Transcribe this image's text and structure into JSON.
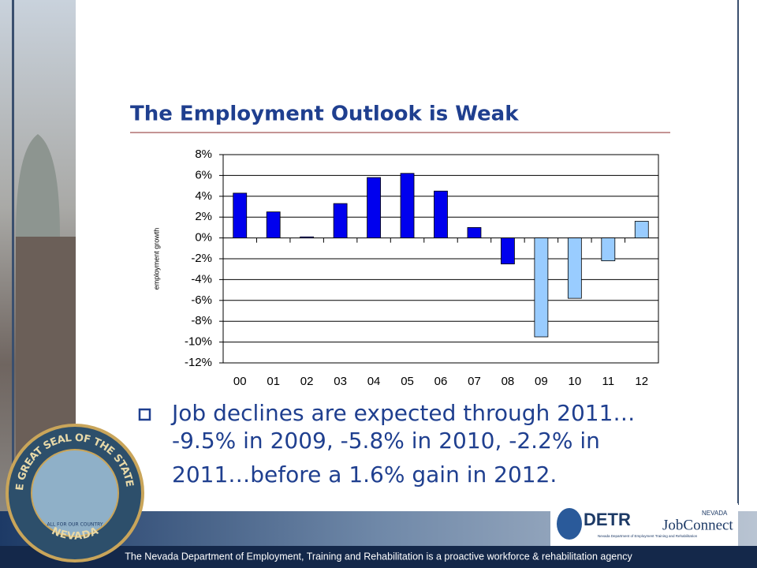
{
  "chart_data": {
    "type": "bar",
    "title": "The Employment Outlook is Weak",
    "y_label": "employment growth",
    "categories": [
      "00",
      "01",
      "02",
      "03",
      "04",
      "05",
      "06",
      "07",
      "08",
      "09",
      "10",
      "11",
      "12"
    ],
    "values": [
      4.3,
      2.5,
      0.1,
      3.3,
      5.8,
      6.2,
      4.5,
      1.0,
      -2.5,
      -9.5,
      -5.8,
      -2.2,
      1.6
    ],
    "colors": [
      "#0000ee",
      "#0000ee",
      "#0000ee",
      "#0000ee",
      "#0000ee",
      "#0000ee",
      "#0000ee",
      "#0000ee",
      "#0000ee",
      "#99ccff",
      "#99ccff",
      "#99ccff",
      "#99ccff"
    ],
    "ylim": [
      -12,
      8
    ],
    "yticks": [
      {
        "value": 8,
        "label": "8%"
      },
      {
        "value": 6,
        "label": "6%"
      },
      {
        "value": 4,
        "label": "4%"
      },
      {
        "value": 2,
        "label": "2%"
      },
      {
        "value": 0,
        "label": "0%"
      },
      {
        "value": -2,
        "label": "-2%"
      },
      {
        "value": -4,
        "label": "-4%"
      },
      {
        "value": -6,
        "label": "-6%"
      },
      {
        "value": -8,
        "label": "-8%"
      },
      {
        "value": -10,
        "label": "-10%"
      },
      {
        "value": -12,
        "label": "-12%"
      }
    ],
    "grid": true
  },
  "bullet": [
    "Job declines are expected through 2011…",
    "-9.5% in 2009, -5.8% in 2010, -2.2% in",
    "2011…before a 1.6% gain in 2012."
  ],
  "footer": "The Nevada Department of Employment, Training and Rehabilitation is a proactive workforce & rehabilitation agency",
  "seal": {
    "top": "THE GREAT SEAL OF THE STATE OF",
    "bottom": "NEVADA",
    "motto": "ALL FOR OUR COUNTRY"
  },
  "logos": {
    "detr": "DETR",
    "detr_sub": "Nevada Department of Employment Training and Rehabilitation",
    "state": "NEVADA",
    "jobconnect": "JobConnect"
  }
}
